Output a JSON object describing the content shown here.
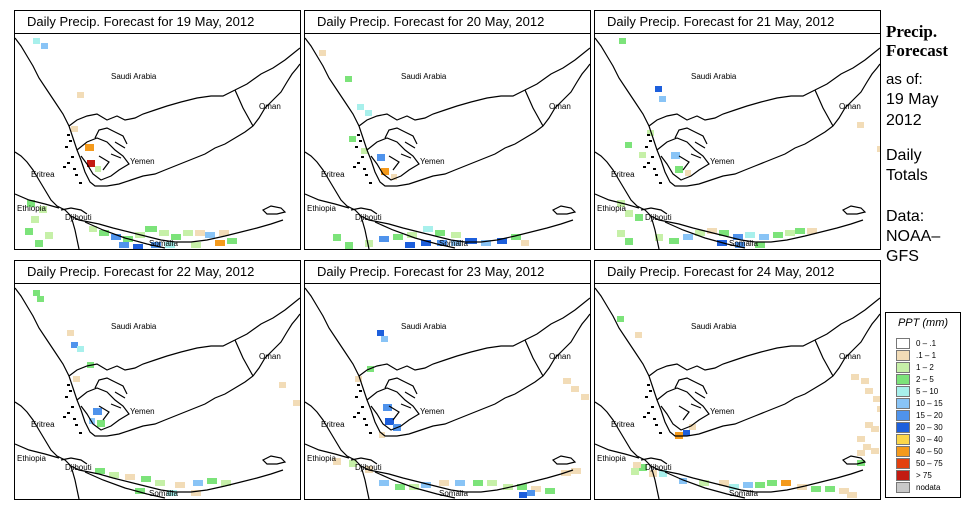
{
  "panels": [
    {
      "title": "Daily Precip. Forecast for  19 May, 2012"
    },
    {
      "title": "Daily Precip. Forecast for  20 May, 2012"
    },
    {
      "title": "Daily Precip. Forecast for  21 May, 2012"
    },
    {
      "title": "Daily Precip. Forecast for  22 May, 2012"
    },
    {
      "title": "Daily Precip. Forecast for  23 May, 2012"
    },
    {
      "title": "Daily Precip. Forecast for  24 May, 2012"
    }
  ],
  "countries": [
    "Saudi Arabia",
    "Oman",
    "Yemen",
    "Eritrea",
    "Ethiopia",
    "Djibouti",
    "Somalia"
  ],
  "sidebar": {
    "title_line1": "Precip.",
    "title_line2": "Forecast",
    "asof_line1": "as of:",
    "asof_line2": "19 May",
    "asof_line3": "2012",
    "daily_line1": "Daily",
    "daily_line2": "Totals",
    "data_line1": "Data:",
    "data_line2": "NOAA–",
    "data_line3": "GFS"
  },
  "legend": {
    "title": "PPT (mm)",
    "items": [
      {
        "label": "0 – .1",
        "color": "#ffffff"
      },
      {
        "label": ".1 – 1",
        "color": "#f2dcb7"
      },
      {
        "label": "1 – 2",
        "color": "#c6f0a8"
      },
      {
        "label": "2 – 5",
        "color": "#7ce37a"
      },
      {
        "label": "5 – 10",
        "color": "#a8f0ec"
      },
      {
        "label": "10 – 15",
        "color": "#89c4f6"
      },
      {
        "label": "15 – 20",
        "color": "#4f93ec"
      },
      {
        "label": "20 – 30",
        "color": "#1d5fdc"
      },
      {
        "label": "30 – 40",
        "color": "#fbd64a"
      },
      {
        "label": "40 – 50",
        "color": "#f49a1c"
      },
      {
        "label": "50 – 75",
        "color": "#e2410f"
      },
      {
        "label": "> 75",
        "color": "#c31b12"
      },
      {
        "label": "nodata",
        "color": "#c8c8c8"
      }
    ]
  }
}
